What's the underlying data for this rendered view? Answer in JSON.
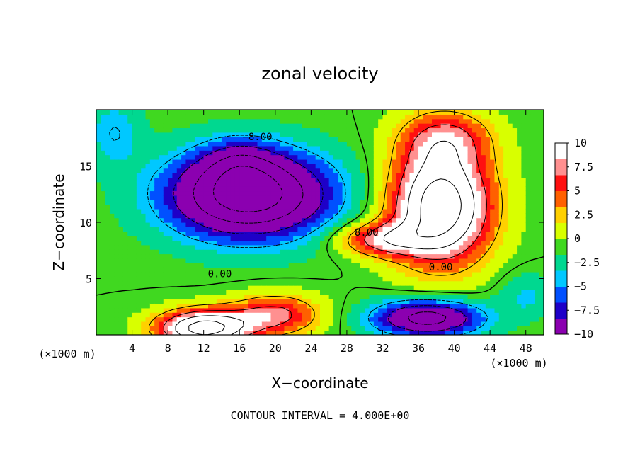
{
  "chart_data": {
    "type": "heatmap",
    "title": "zonal velocity",
    "xlabel": "X−coordinate",
    "ylabel": "Z−coordinate",
    "x_unit_left": "(×1000 m)",
    "x_unit_right": "(×1000 m)",
    "xlim": [
      0,
      50
    ],
    "ylim": [
      0,
      20
    ],
    "x_ticks": [
      4,
      8,
      12,
      16,
      20,
      24,
      28,
      32,
      36,
      40,
      44,
      48
    ],
    "y_ticks": [
      5,
      10,
      15
    ],
    "colorbar": {
      "range": [
        -10,
        10
      ],
      "ticks": [
        {
          "value": 10,
          "label": "10"
        },
        {
          "value": 7.5,
          "label": "7.5"
        },
        {
          "value": 5,
          "label": "5"
        },
        {
          "value": 2.5,
          "label": "2.5"
        },
        {
          "value": 0,
          "label": "0"
        },
        {
          "value": -2.5,
          "label": "−2.5"
        },
        {
          "value": -5,
          "label": "−5"
        },
        {
          "value": -7.5,
          "label": "−7.5"
        },
        {
          "value": -10,
          "label": "−10"
        }
      ],
      "colors": [
        "#8b00b0",
        "#1e00c8",
        "#0050ff",
        "#00c8ff",
        "#00d890",
        "#40d820",
        "#d8ff00",
        "#ffd000",
        "#ff6000",
        "#ff1010",
        "#ff9090",
        "#ffffff"
      ]
    },
    "contour_labels": [
      {
        "text": "−8.00",
        "x": 18,
        "y": 17.5
      },
      {
        "text": "8.00",
        "x": 30.2,
        "y": 9.0
      },
      {
        "text": "0.00",
        "x": 13.8,
        "y": 5.3
      },
      {
        "text": "0.00",
        "x": 38.5,
        "y": 5.9
      }
    ],
    "features": [
      {
        "x": 17,
        "z": 12.5,
        "sx": 9,
        "sz": 3.8,
        "amp": -19
      },
      {
        "x": 16,
        "z": 15.5,
        "sx": 4,
        "sz": 2,
        "amp": -4
      },
      {
        "x": 32,
        "z": 8.5,
        "sx": 5,
        "sz": 1.5,
        "amp": 9
      },
      {
        "x": 38.5,
        "z": 11.5,
        "sx": 5.5,
        "sz": 5,
        "amp": 19
      },
      {
        "x": 39,
        "z": 17.5,
        "sx": 5,
        "sz": 2.5,
        "amp": 7
      },
      {
        "x": 12,
        "z": 0.6,
        "sx": 5,
        "sz": 1.6,
        "amp": 18
      },
      {
        "x": 20,
        "z": 1.8,
        "sx": 5,
        "sz": 1.8,
        "amp": 9
      },
      {
        "x": 37,
        "z": 1.5,
        "sx": 6,
        "sz": 1.6,
        "amp": -14
      },
      {
        "x": 48,
        "z": 3.5,
        "sx": 3,
        "sz": 2,
        "amp": -3
      },
      {
        "x": 2,
        "z": 18,
        "sx": 3,
        "sz": 3,
        "amp": -4
      }
    ],
    "contour_interval_text": "CONTOUR INTERVAL = 4.000E+00"
  }
}
